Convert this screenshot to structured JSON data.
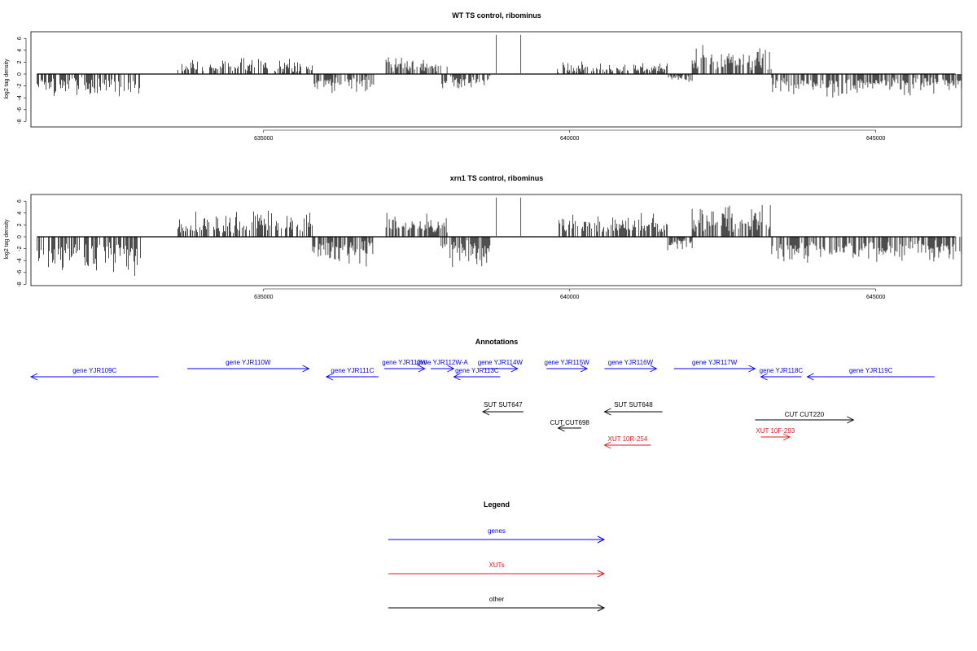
{
  "chart_data": [
    {
      "type": "bar",
      "title": "WT TS control, ribominus",
      "ylabel": "log2 tag density",
      "xlim": [
        631200,
        646400
      ],
      "ylim": [
        -8,
        7
      ],
      "yticks": [
        6,
        4,
        2,
        0,
        -2,
        -4,
        -6,
        -8
      ],
      "xticks": [
        635000,
        640000,
        645000
      ],
      "xtick_labels": [
        "635000",
        "640000",
        "645000"
      ],
      "signal_regions": [
        {
          "start": 631300,
          "end": 633000,
          "strand": "minus",
          "max": 4.5
        },
        {
          "start": 633600,
          "end": 635800,
          "strand": "plus",
          "max": 2.8
        },
        {
          "start": 635800,
          "end": 636800,
          "strand": "minus",
          "max": 3.5
        },
        {
          "start": 637000,
          "end": 638000,
          "strand": "plus",
          "max": 3.0
        },
        {
          "start": 637900,
          "end": 638700,
          "strand": "minus",
          "max": 3.0
        },
        {
          "start": 639800,
          "end": 641600,
          "strand": "plus",
          "max": 2.2
        },
        {
          "start": 641600,
          "end": 642000,
          "strand": "minus",
          "max": 1.5
        },
        {
          "start": 642000,
          "end": 643300,
          "strand": "plus",
          "max": 5.5
        },
        {
          "start": 643300,
          "end": 646400,
          "strand": "minus",
          "max": 4.0
        }
      ],
      "markers": [
        638800,
        639200
      ],
      "marker_color": "#e41a1c"
    },
    {
      "type": "bar",
      "title": "xrn1 TS control, ribominus",
      "ylabel": "log2 tag density",
      "xlim": [
        631200,
        646400
      ],
      "ylim": [
        -8,
        7
      ],
      "yticks": [
        6,
        4,
        2,
        0,
        -2,
        -4,
        -6,
        -8
      ],
      "xticks": [
        635000,
        640000,
        645000
      ],
      "xtick_labels": [
        "635000",
        "640000",
        "645000"
      ],
      "signal_regions": [
        {
          "start": 631300,
          "end": 633000,
          "strand": "minus",
          "max": 7.0
        },
        {
          "start": 633600,
          "end": 635800,
          "strand": "plus",
          "max": 4.5
        },
        {
          "start": 635800,
          "end": 636800,
          "strand": "minus",
          "max": 5.5
        },
        {
          "start": 637000,
          "end": 638000,
          "strand": "plus",
          "max": 5.0
        },
        {
          "start": 637900,
          "end": 638700,
          "strand": "minus",
          "max": 5.5
        },
        {
          "start": 639800,
          "end": 641600,
          "strand": "plus",
          "max": 4.2
        },
        {
          "start": 641600,
          "end": 642000,
          "strand": "minus",
          "max": 2.5
        },
        {
          "start": 642000,
          "end": 643300,
          "strand": "plus",
          "max": 6.5
        },
        {
          "start": 643300,
          "end": 646400,
          "strand": "minus",
          "max": 5.2
        }
      ],
      "markers": [
        638800,
        639200
      ],
      "marker_color": "#e41a1c"
    }
  ],
  "annotations": {
    "title": "Annotations",
    "colors": {
      "gene": "#0000ff",
      "xut": "#e41a1c",
      "other": "#000000"
    },
    "features": [
      {
        "label": "gene YJR109C",
        "start": 630900,
        "end": 633100,
        "strand": "minus",
        "kind": "gene",
        "row": 1
      },
      {
        "label": "gene YJR110W",
        "start": 633600,
        "end": 635700,
        "strand": "plus",
        "kind": "gene",
        "row": 0
      },
      {
        "label": "gene YJR111C",
        "start": 636000,
        "end": 636900,
        "strand": "minus",
        "kind": "gene",
        "row": 1
      },
      {
        "label": "gene YJR112W",
        "start": 637000,
        "end": 637700,
        "strand": "plus",
        "kind": "gene",
        "row": 0
      },
      {
        "label": "gene YJR112W-A",
        "start": 637800,
        "end": 638200,
        "strand": "plus",
        "kind": "gene",
        "row": 0
      },
      {
        "label": "gene YJR113C",
        "start": 638200,
        "end": 639000,
        "strand": "minus",
        "kind": "gene",
        "row": 1
      },
      {
        "label": "gene YJR114W",
        "start": 638700,
        "end": 639300,
        "strand": "plus",
        "kind": "gene",
        "row": 0
      },
      {
        "label": "gene YJR115W",
        "start": 639800,
        "end": 640500,
        "strand": "plus",
        "kind": "gene",
        "row": 0
      },
      {
        "label": "gene YJR116W",
        "start": 640800,
        "end": 641700,
        "strand": "plus",
        "kind": "gene",
        "row": 0
      },
      {
        "label": "gene YJR117W",
        "start": 642000,
        "end": 643400,
        "strand": "plus",
        "kind": "gene",
        "row": 0
      },
      {
        "label": "gene YJR118C",
        "start": 643500,
        "end": 644200,
        "strand": "minus",
        "kind": "gene",
        "row": 1
      },
      {
        "label": "gene YJR119C",
        "start": 644300,
        "end": 646500,
        "strand": "minus",
        "kind": "gene",
        "row": 1
      },
      {
        "label": "SUT SUT647",
        "start": 638700,
        "end": 639400,
        "strand": "minus",
        "kind": "other",
        "row": 4
      },
      {
        "label": "SUT SUT648",
        "start": 640800,
        "end": 641800,
        "strand": "minus",
        "kind": "other",
        "row": 4
      },
      {
        "label": "CUT CUT698",
        "start": 640000,
        "end": 640400,
        "strand": "minus",
        "kind": "other",
        "row": 6
      },
      {
        "label": "CUT CUT220",
        "start": 643400,
        "end": 645100,
        "strand": "plus",
        "kind": "other",
        "row": 5
      },
      {
        "label": "XUT 10R-254",
        "start": 640800,
        "end": 641600,
        "strand": "minus",
        "kind": "xut",
        "row": 8
      },
      {
        "label": "XUT 10F-293",
        "start": 643500,
        "end": 644000,
        "strand": "plus",
        "kind": "xut",
        "row": 7
      }
    ]
  },
  "legend": {
    "title": "Legend",
    "items": [
      {
        "label": "genes",
        "color": "#0000ff"
      },
      {
        "label": "XUTs",
        "color": "#e41a1c"
      },
      {
        "label": "other",
        "color": "#000000"
      }
    ]
  }
}
